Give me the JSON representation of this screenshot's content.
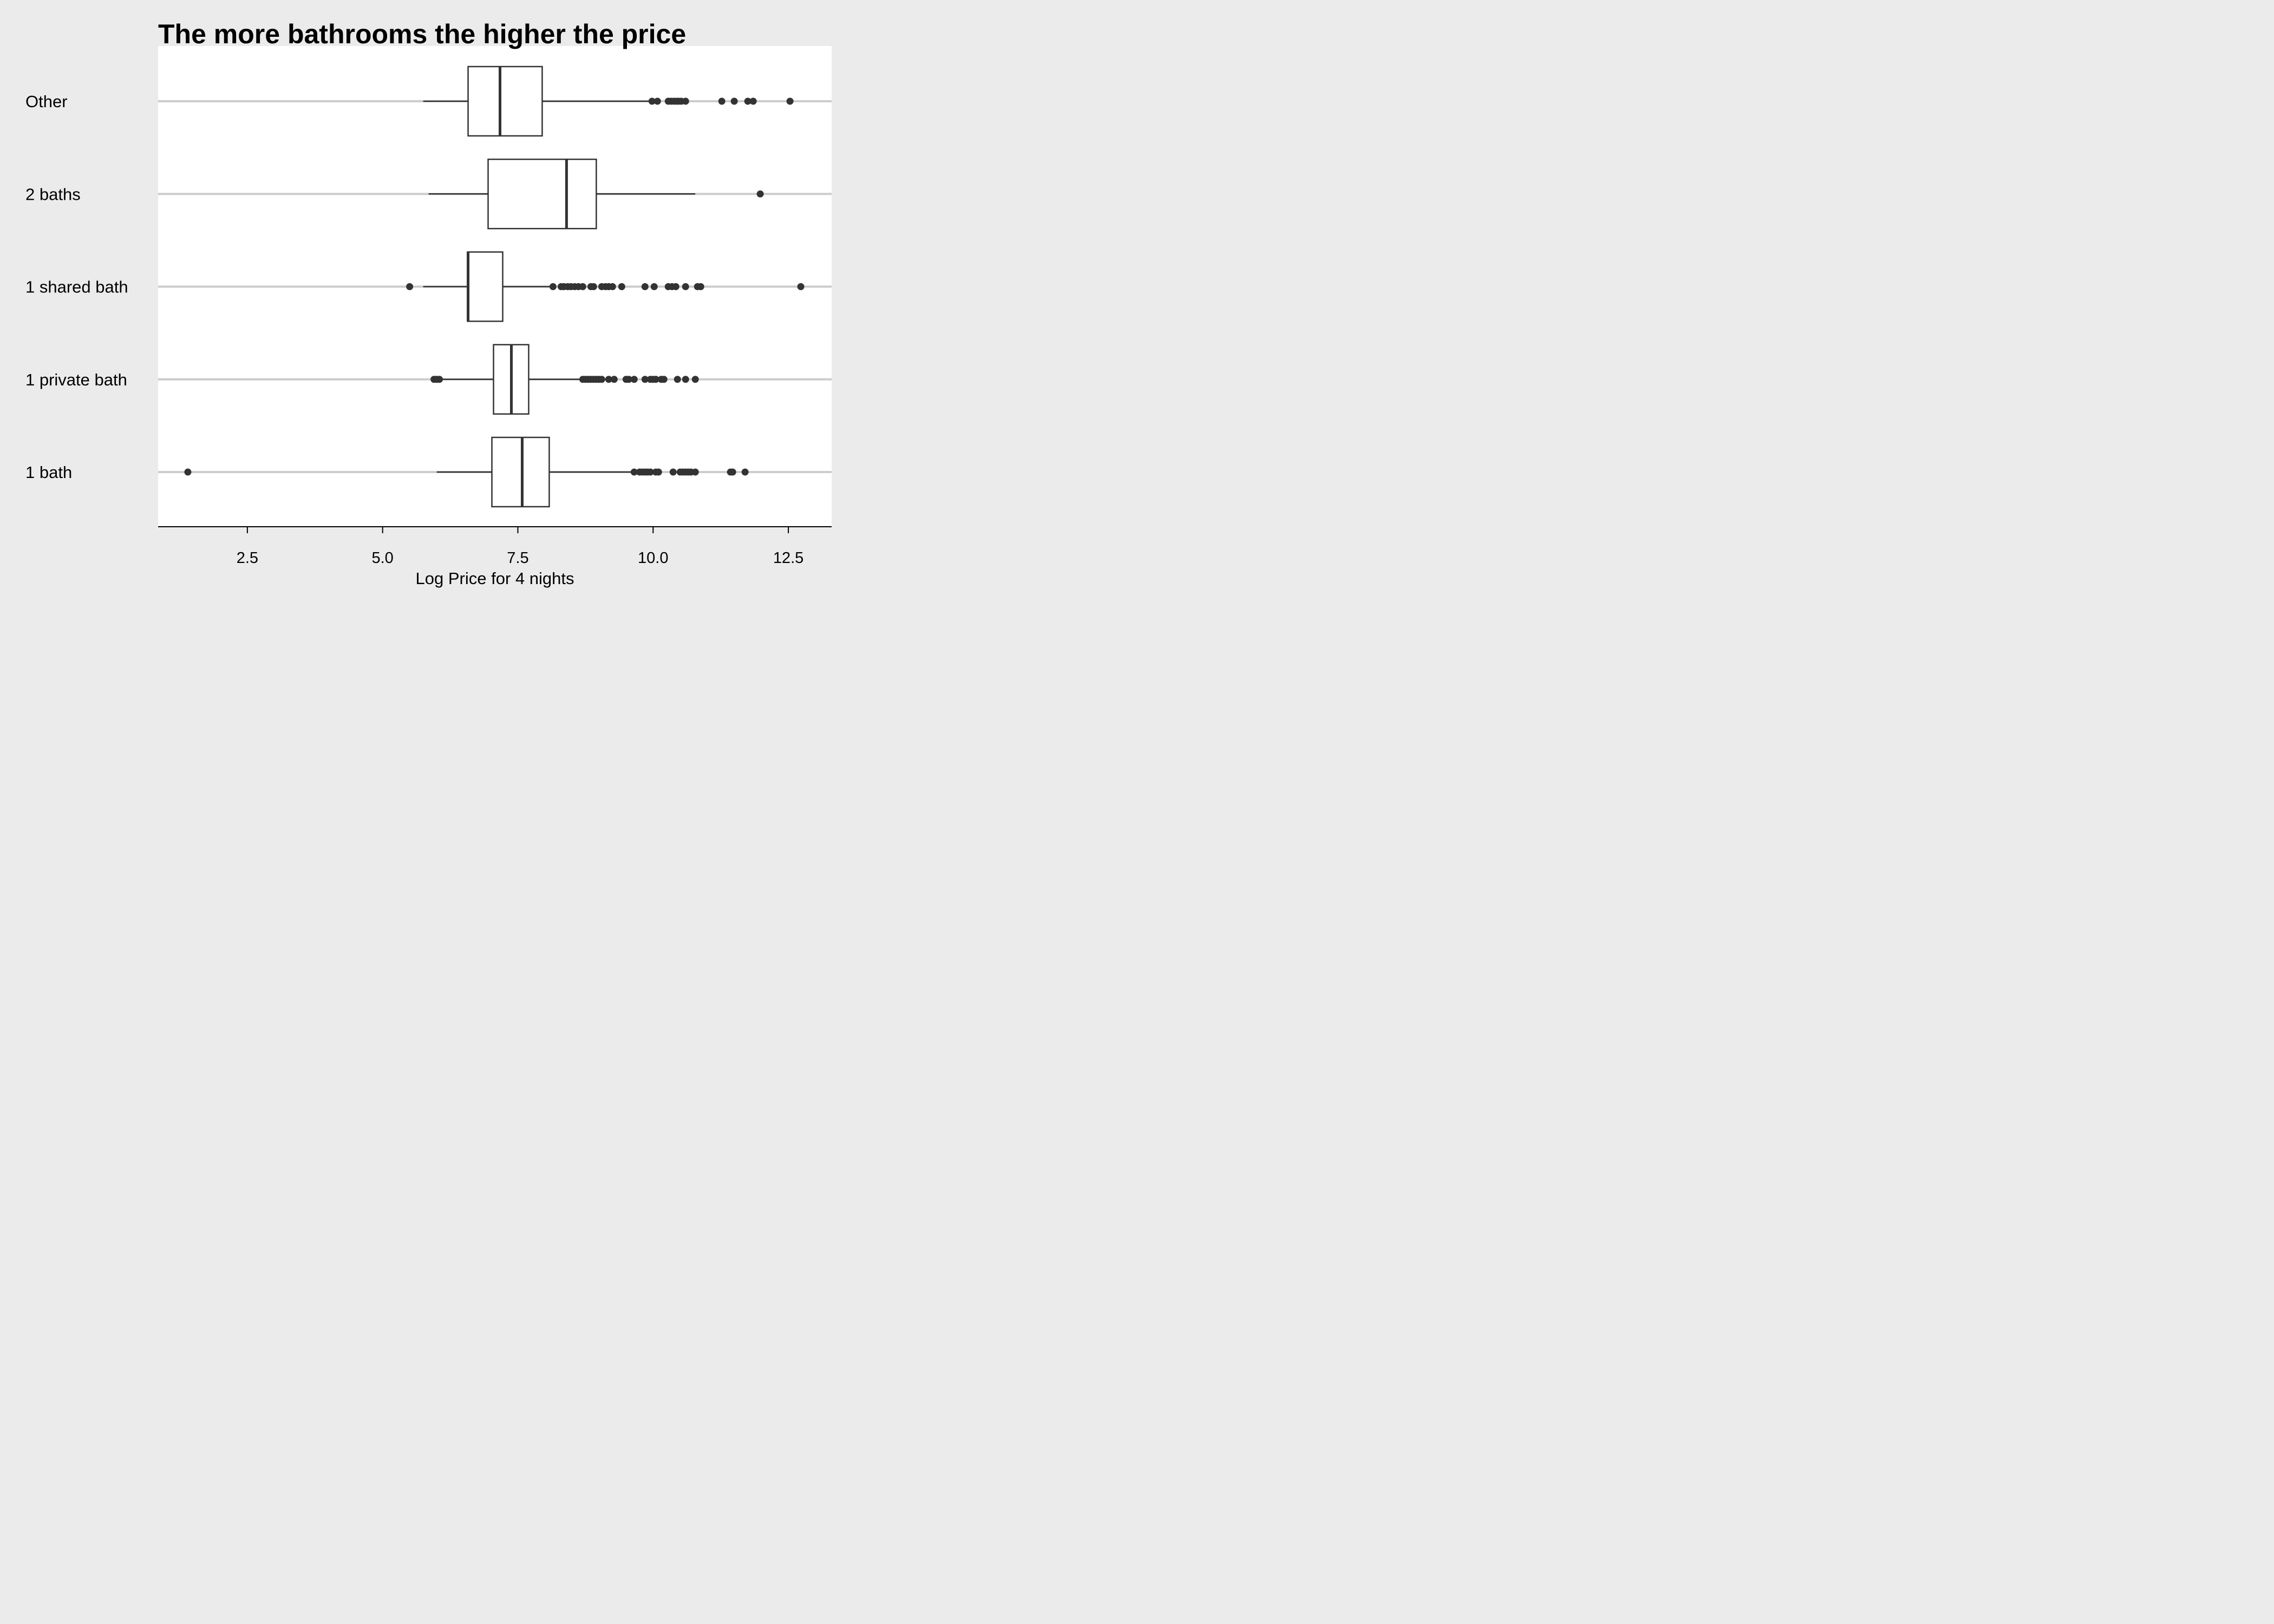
{
  "chart_data": {
    "type": "boxplot",
    "title": "The more bathrooms the higher the price",
    "xlabel": "Log Price for 4 nights",
    "ylabel": "",
    "xlim": [
      0.85,
      13.3
    ],
    "x_ticks": [
      "2.5",
      "5.0",
      "7.5",
      "10.0",
      "12.5"
    ],
    "x_tick_values": [
      2.5,
      5.0,
      7.5,
      10.0,
      12.5
    ],
    "grid": "horizontal major lines only",
    "colors": {
      "background": "#ebebeb",
      "panel": "#ffffff",
      "gridline": "#cccccc",
      "box_outline": "#333333",
      "box_fill": "#ffffff",
      "outlier": "#333333"
    },
    "categories": [
      "Other",
      "2 baths",
      "1 shared bath",
      "1 private bath",
      "1 bath"
    ],
    "boxes": [
      {
        "category": "Other",
        "whisker_low": 5.75,
        "q1": 6.58,
        "median": 7.17,
        "q3": 7.95,
        "whisker_high": 9.95,
        "outliers": [
          9.98,
          10.08,
          10.28,
          10.33,
          10.38,
          10.43,
          10.47,
          10.52,
          10.6,
          11.27,
          11.5,
          11.75,
          11.85,
          12.53
        ]
      },
      {
        "category": "2 baths",
        "whisker_low": 5.85,
        "q1": 6.95,
        "median": 8.4,
        "q3": 8.95,
        "whisker_high": 10.78,
        "outliers": [
          11.98
        ]
      },
      {
        "category": "1 shared bath",
        "whisker_low": 5.75,
        "q1": 6.57,
        "median": 6.58,
        "q3": 7.22,
        "whisker_high": 8.15,
        "outliers": [
          5.5,
          8.15,
          8.3,
          8.35,
          8.42,
          8.48,
          8.55,
          8.62,
          8.7,
          8.85,
          8.9,
          9.05,
          9.12,
          9.18,
          9.25,
          9.42,
          9.85,
          10.02,
          10.28,
          10.35,
          10.42,
          10.6,
          10.82,
          10.88,
          12.73
        ]
      },
      {
        "category": "1 private bath",
        "whisker_low": 6.05,
        "q1": 7.05,
        "median": 7.38,
        "q3": 7.7,
        "whisker_high": 8.68,
        "outliers": [
          5.95,
          6.0,
          6.05,
          8.7,
          8.75,
          8.8,
          8.85,
          8.9,
          8.95,
          9.0,
          9.05,
          9.18,
          9.28,
          9.5,
          9.55,
          9.65,
          9.85,
          9.95,
          10.0,
          10.05,
          10.15,
          10.2,
          10.45,
          10.6,
          10.78
        ]
      },
      {
        "category": "1 bath",
        "whisker_low": 6.0,
        "q1": 7.02,
        "median": 7.58,
        "q3": 8.08,
        "whisker_high": 9.65,
        "outliers": [
          1.4,
          9.65,
          9.75,
          9.8,
          9.85,
          9.9,
          9.95,
          10.05,
          10.1,
          10.37,
          10.5,
          10.55,
          10.6,
          10.65,
          10.7,
          10.78,
          11.43,
          11.47,
          11.7
        ]
      }
    ]
  }
}
